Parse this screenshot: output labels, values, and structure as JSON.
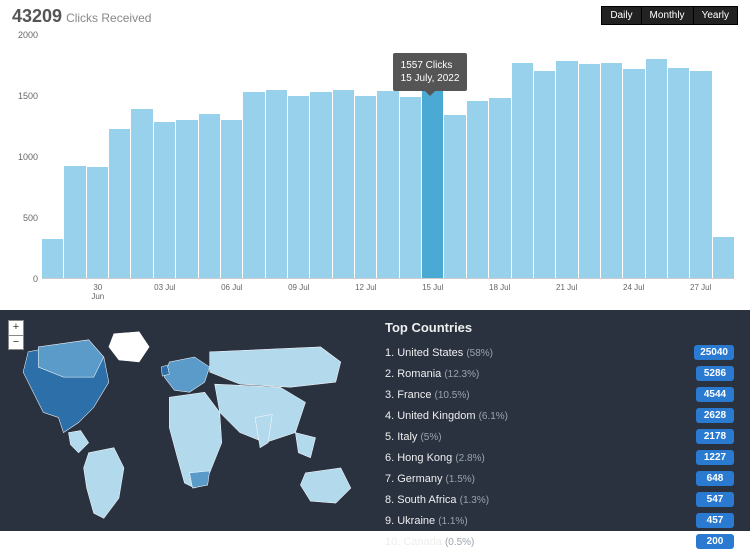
{
  "header": {
    "total": "43209",
    "subtitle": "Clicks Received",
    "tabs": [
      "Daily",
      "Monthly",
      "Yearly"
    ]
  },
  "chart": {
    "type": "bar",
    "ymax": 2000,
    "yticks": [
      0,
      500,
      1000,
      1500,
      2000
    ],
    "bar_color": "#97d1ec",
    "highlight_color": "#4aaad4",
    "highlight_index": 17,
    "tooltip": {
      "line1": "1557 Clicks",
      "line2": "15 July, 2022"
    },
    "bars": [
      {
        "label": "",
        "value": 320
      },
      {
        "label": "",
        "value": 920
      },
      {
        "label": "30 Jun",
        "value": 910
      },
      {
        "label": "",
        "value": 1230
      },
      {
        "label": "",
        "value": 1390
      },
      {
        "label": "03 Jul",
        "value": 1280
      },
      {
        "label": "",
        "value": 1300
      },
      {
        "label": "",
        "value": 1350
      },
      {
        "label": "06 Jul",
        "value": 1300
      },
      {
        "label": "",
        "value": 1530
      },
      {
        "label": "",
        "value": 1550
      },
      {
        "label": "09 Jul",
        "value": 1500
      },
      {
        "label": "",
        "value": 1530
      },
      {
        "label": "",
        "value": 1550
      },
      {
        "label": "12 Jul",
        "value": 1500
      },
      {
        "label": "",
        "value": 1540
      },
      {
        "label": "",
        "value": 1490
      },
      {
        "label": "15 Jul",
        "value": 1557
      },
      {
        "label": "",
        "value": 1340
      },
      {
        "label": "",
        "value": 1460
      },
      {
        "label": "18 Jul",
        "value": 1480
      },
      {
        "label": "",
        "value": 1770
      },
      {
        "label": "",
        "value": 1700
      },
      {
        "label": "21 Jul",
        "value": 1790
      },
      {
        "label": "",
        "value": 1760
      },
      {
        "label": "",
        "value": 1770
      },
      {
        "label": "24 Jul",
        "value": 1720
      },
      {
        "label": "",
        "value": 1800
      },
      {
        "label": "",
        "value": 1730
      },
      {
        "label": "27 Jul",
        "value": 1700
      },
      {
        "label": "",
        "value": 340
      }
    ]
  },
  "countries": {
    "title": "Top Countries",
    "rows": [
      {
        "rank": 1,
        "name": "United States",
        "pct": "58%",
        "count": "25040"
      },
      {
        "rank": 2,
        "name": "Romania",
        "pct": "12.3%",
        "count": "5286"
      },
      {
        "rank": 3,
        "name": "France",
        "pct": "10.5%",
        "count": "4544"
      },
      {
        "rank": 4,
        "name": "United Kingdom",
        "pct": "6.1%",
        "count": "2628"
      },
      {
        "rank": 5,
        "name": "Italy",
        "pct": "5%",
        "count": "2178"
      },
      {
        "rank": 6,
        "name": "Hong Kong",
        "pct": "2.8%",
        "count": "1227"
      },
      {
        "rank": 7,
        "name": "Germany",
        "pct": "1.5%",
        "count": "648"
      },
      {
        "rank": 8,
        "name": "South Africa",
        "pct": "1.3%",
        "count": "547"
      },
      {
        "rank": 9,
        "name": "Ukraine",
        "pct": "1.1%",
        "count": "457"
      },
      {
        "rank": 10,
        "name": "Canada",
        "pct": "0.5%",
        "count": "200"
      }
    ]
  },
  "map": {
    "zoom_in": "+",
    "zoom_out": "−",
    "base_fill": "#b3d9ed",
    "stroke": "#ffffff",
    "dark_bg": "#2a3240",
    "hi_fill_1": "#2d6fa8",
    "hi_fill_2": "#5a9bc9"
  }
}
